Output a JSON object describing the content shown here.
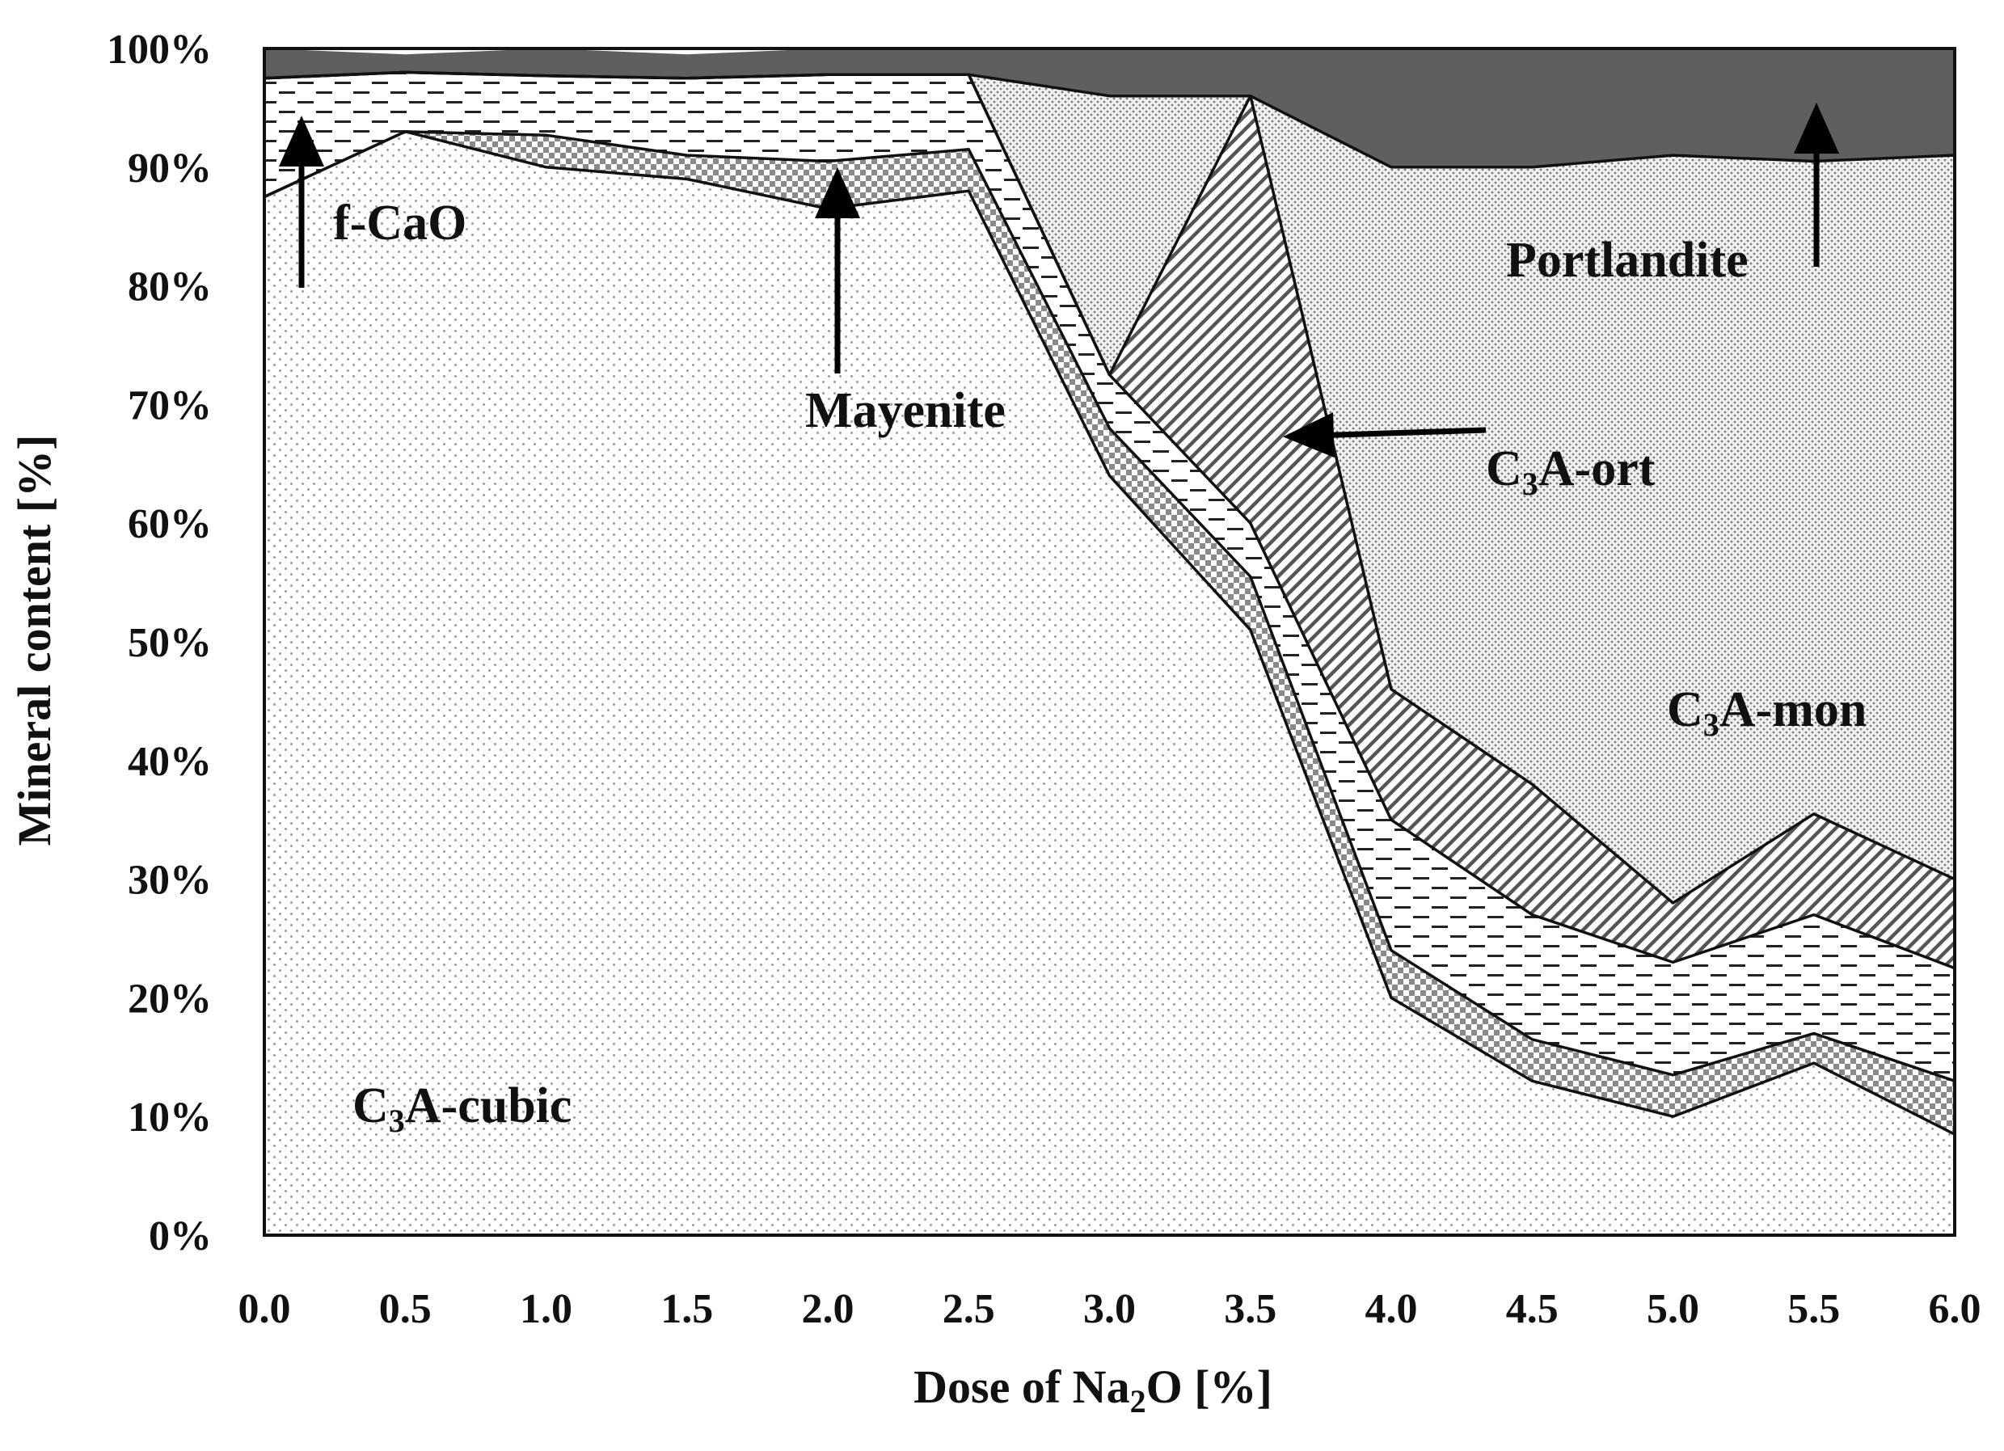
{
  "chart_data": {
    "type": "area",
    "stacked": true,
    "x": [
      0.0,
      0.5,
      1.0,
      1.5,
      2.0,
      2.5,
      3.0,
      3.5,
      4.0,
      4.5,
      5.0,
      5.5,
      6.0
    ],
    "x_tick_labels": [
      "0.0",
      "0.5",
      "1.0",
      "1.5",
      "2.0",
      "2.5",
      "3.0",
      "3.5",
      "4.0",
      "4.5",
      "5.0",
      "5.5",
      "6.0"
    ],
    "y_tick_labels": [
      "0%",
      "10%",
      "20%",
      "30%",
      "40%",
      "50%",
      "60%",
      "70%",
      "80%",
      "90%",
      "100%"
    ],
    "xlim": [
      0,
      6
    ],
    "ylim": [
      0,
      100
    ],
    "xlabel": {
      "prefix": "Dose of Na",
      "sub": "2",
      "suffix": "O [%]"
    },
    "ylabel": "Mineral content [%]",
    "series": [
      {
        "name": "C3A-cubic",
        "fill": "dots-fine",
        "values": [
          87.5,
          93.0,
          90.0,
          89.0,
          86.5,
          88.0,
          64.0,
          51.0,
          20.0,
          13.0,
          10.0,
          14.5,
          8.5
        ]
      },
      {
        "name": "Mayenite",
        "fill": "checker",
        "values": [
          0.0,
          0.0,
          2.7,
          2.0,
          4.0,
          3.5,
          4.0,
          4.5,
          4.0,
          3.5,
          3.5,
          2.5,
          4.5
        ]
      },
      {
        "name": "C3A-ort",
        "fill": "dashes",
        "values": [
          10.0,
          5.0,
          5.0,
          6.5,
          7.3,
          6.3,
          4.5,
          4.5,
          11.0,
          10.5,
          9.5,
          10.0,
          9.5
        ]
      },
      {
        "name": "C3A-mon",
        "fill": "diagonal",
        "values": [
          0.0,
          0.0,
          0.0,
          0.0,
          0.0,
          0.0,
          0.0,
          36.0,
          11.0,
          11.0,
          5.0,
          8.5,
          7.5
        ]
      },
      {
        "name": "Portlandite",
        "fill": "dots-dense",
        "values": [
          0.0,
          0.0,
          0.0,
          0.0,
          0.0,
          0.0,
          23.5,
          0.0,
          44.0,
          52.0,
          63.0,
          55.0,
          61.0
        ]
      },
      {
        "name": "f-CaO",
        "fill": "solid-dark",
        "values": [
          2.5,
          1.5,
          2.3,
          2.0,
          2.2,
          2.2,
          4.0,
          4.0,
          10.0,
          10.0,
          9.0,
          9.5,
          9.0
        ]
      }
    ],
    "annotations": [
      {
        "key": "fcao",
        "text": "f-CaO"
      },
      {
        "key": "mayenite",
        "text": "Mayenite"
      },
      {
        "key": "portlandite",
        "text": "Portlandite"
      },
      {
        "key": "c3a_ort",
        "main": "C",
        "sub": "3",
        "rest": "A-ort"
      },
      {
        "key": "c3a_mon",
        "main": "C",
        "sub": "3",
        "rest": "A-mon"
      },
      {
        "key": "c3a_cubic",
        "main": "C",
        "sub": "3",
        "rest": "A-cubic"
      }
    ],
    "colors": {
      "f-CaO": "#5f5f5f",
      "line": "#111111",
      "checker": "#8a8a8a",
      "hatch": "#444444"
    }
  }
}
